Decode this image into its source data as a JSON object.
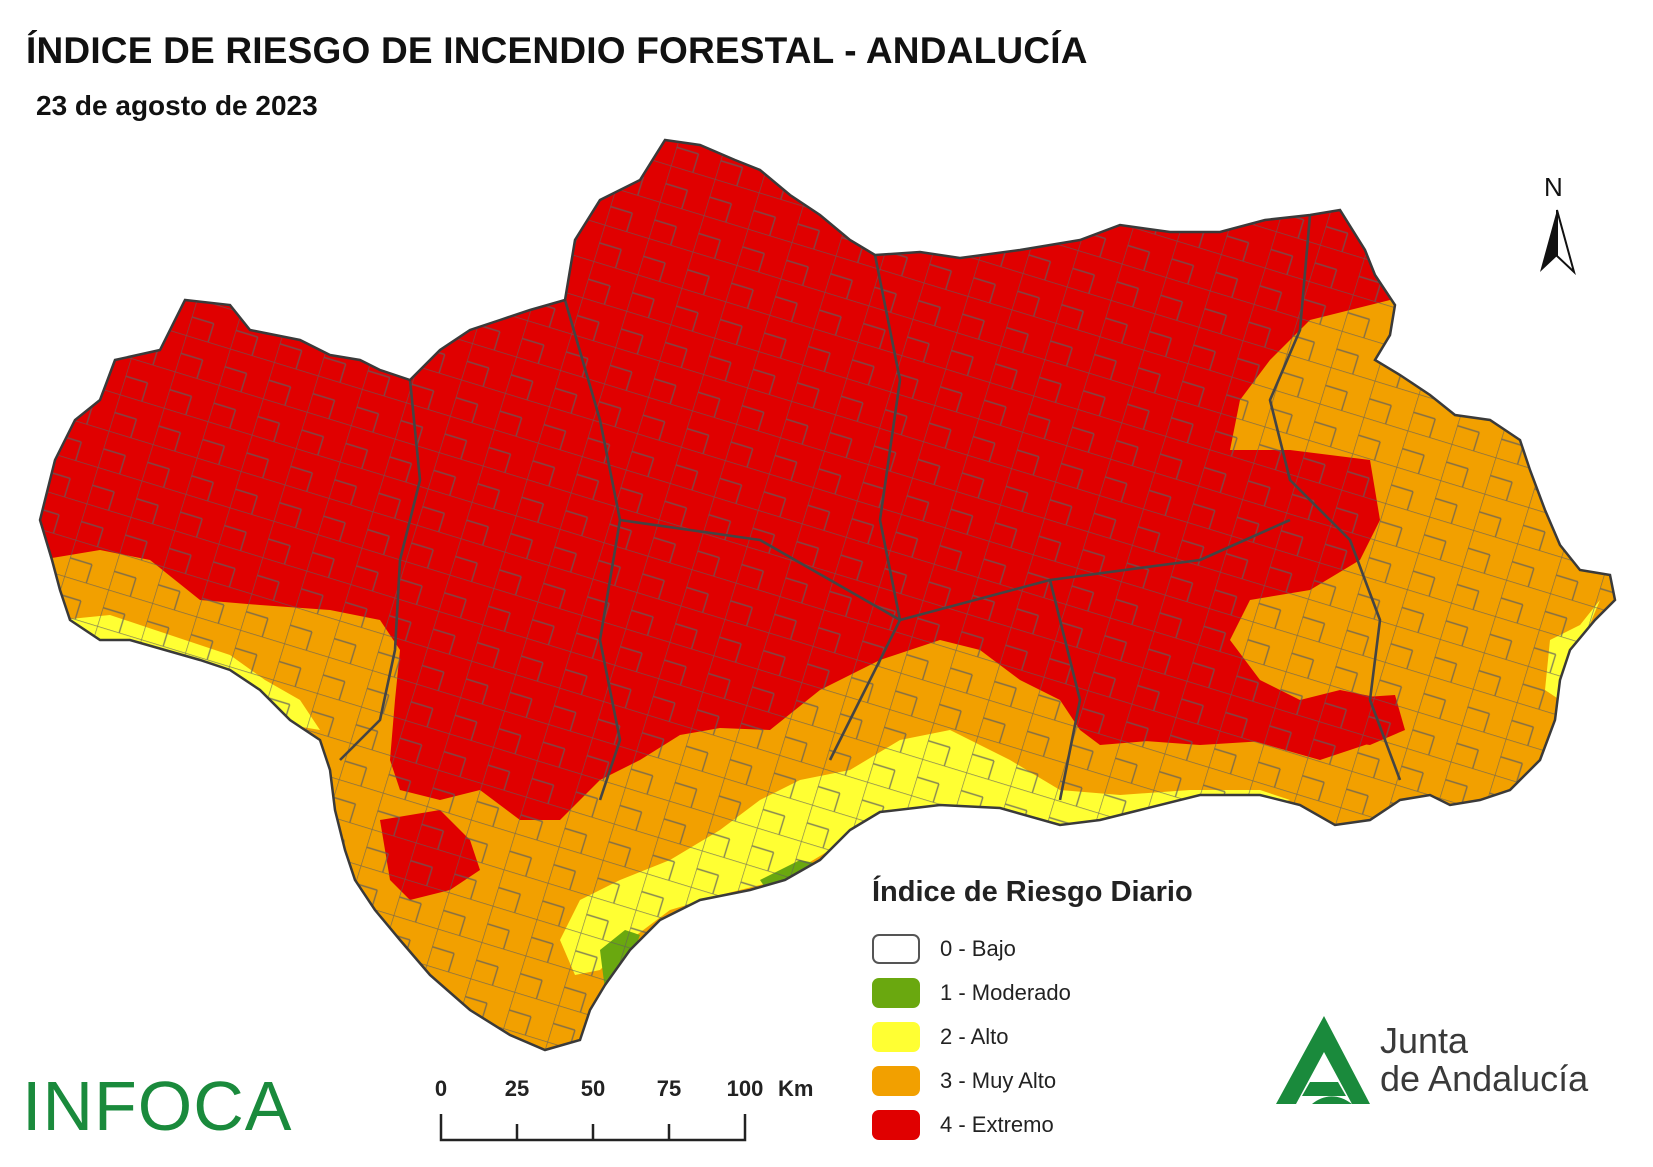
{
  "header": {
    "title": "ÍNDICE DE RIESGO DE INCENDIO FORESTAL - ANDALUCÍA",
    "date": "23 de agosto de 2023"
  },
  "north_arrow": {
    "label": "N"
  },
  "legend": {
    "title": "Índice de Riesgo Diario",
    "items": [
      {
        "label": "0 - Bajo",
        "color": "#ffffff"
      },
      {
        "label": "1 - Moderado",
        "color": "#6aa80f"
      },
      {
        "label": "2 - Alto",
        "color": "#ffff33"
      },
      {
        "label": "3 - Muy Alto",
        "color": "#f2a000"
      },
      {
        "label": "4 - Extremo",
        "color": "#e00000"
      }
    ]
  },
  "scale_bar": {
    "ticks": [
      "0",
      "25",
      "50",
      "75",
      "100"
    ],
    "unit": "Km"
  },
  "logos": {
    "infoca": "INFOCA",
    "junta_line1": "Junta",
    "junta_line2": "de Andalucía",
    "junta_color": "#1a8a3c"
  }
}
